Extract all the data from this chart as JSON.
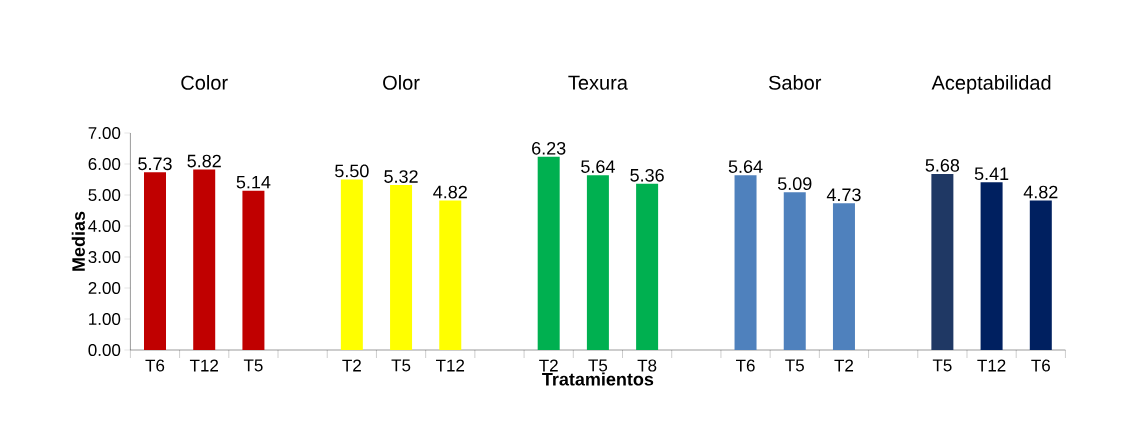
{
  "chart_data": {
    "type": "bar",
    "xlabel": "Tratamientos",
    "ylabel": "Medias",
    "categories": [
      "T6",
      "T12",
      "T5",
      null,
      "T2",
      "T5",
      "T12",
      null,
      "T2",
      "T5",
      "T8",
      null,
      "T6",
      "T5",
      "T2",
      null,
      "T5",
      "T12",
      "T6"
    ],
    "values": [
      5.73,
      5.82,
      5.14,
      null,
      5.5,
      5.32,
      4.82,
      null,
      6.23,
      5.64,
      5.36,
      null,
      5.64,
      5.09,
      4.73,
      null,
      5.68,
      5.41,
      4.82
    ],
    "value_labels": [
      "5.73",
      "5.82",
      "5.14",
      null,
      "5.50",
      "5.32",
      "4.82",
      null,
      "6.23",
      "5.64",
      "5.36",
      null,
      "5.64",
      "5.09",
      "4.73",
      null,
      "5.68",
      "5.41",
      "4.82"
    ],
    "colors": [
      "#c00000",
      "#c00000",
      "#c00000",
      null,
      "#ffff00",
      "#ffff00",
      "#ffff00",
      null,
      "#00b050",
      "#00b050",
      "#00b050",
      null,
      "#4f81bd",
      "#4f81bd",
      "#4f81bd",
      null,
      "#1f3864",
      "#002060",
      "#002060"
    ],
    "ylim": [
      0,
      7
    ],
    "yticks": [
      {
        "value": 0,
        "label": "0.00"
      },
      {
        "value": 1,
        "label": "1.00"
      },
      {
        "value": 2,
        "label": "2.00"
      },
      {
        "value": 3,
        "label": "3.00"
      },
      {
        "value": 4,
        "label": "4.00"
      },
      {
        "value": 5,
        "label": "5.00"
      },
      {
        "value": 6,
        "label": "6.00"
      },
      {
        "value": 7,
        "label": "7.00"
      }
    ],
    "annotations": [
      "Color",
      "Olor",
      "Texura",
      "Sabor",
      "Aceptabilidad"
    ]
  }
}
